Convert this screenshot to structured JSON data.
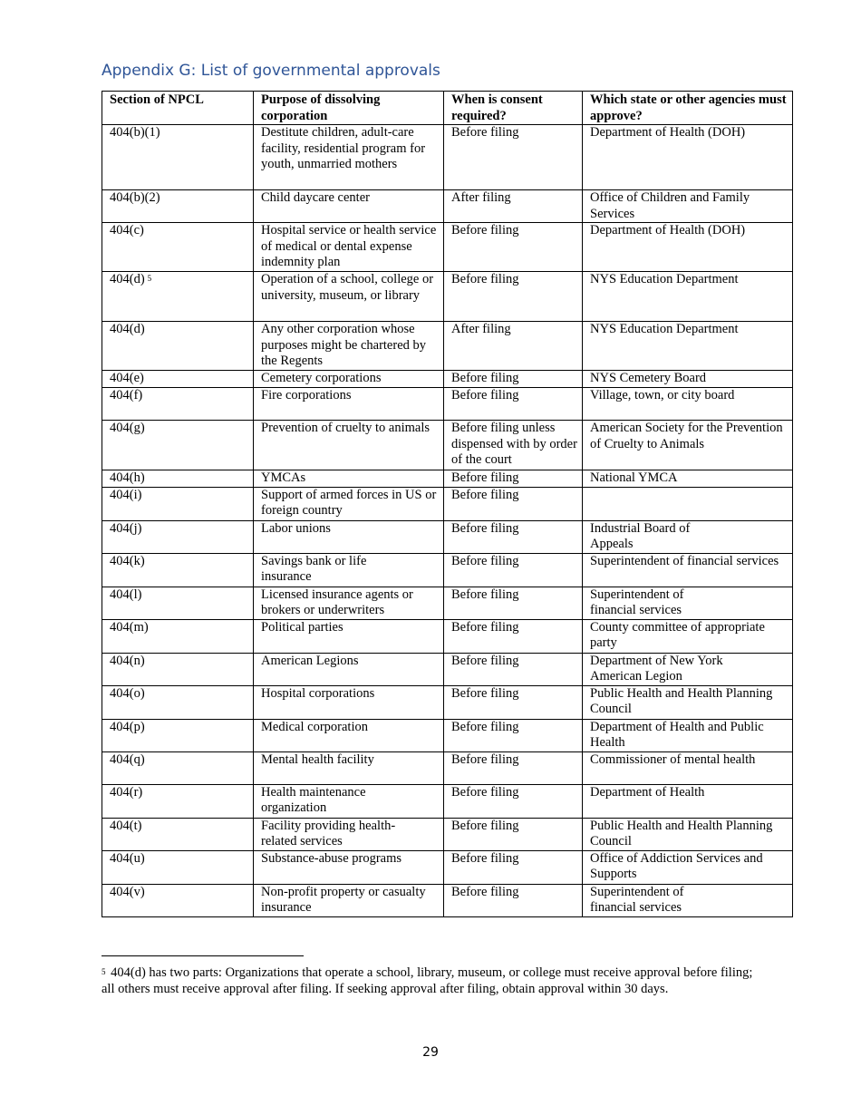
{
  "title": "Appendix G: List of governmental approvals",
  "table": {
    "headers": [
      "Section of NPCL",
      "Purpose of dissolving corporation",
      "When is consent required?",
      "Which state or other agencies must approve?"
    ],
    "rows": [
      {
        "section": "404(b)(1)",
        "purpose": "Destitute children, adult-care facility, residential program for youth, unmarried mothers",
        "when": "Before filing",
        "agency": "Department of Health (DOH)"
      },
      {
        "section": "404(b)(2)",
        "purpose": "Child daycare center",
        "when": "After filing",
        "agency": "Office of Children and Family Services"
      },
      {
        "section": "404(c)",
        "purpose": "Hospital service or health service of medical or dental expense indemnity plan",
        "when": "Before filing",
        "agency": "Department of Health (DOH)"
      },
      {
        "section": "404(d)",
        "footnote_ref": "5",
        "purpose": "Operation of a school, college or university, museum, or library",
        "when": "Before filing",
        "agency": "NYS Education Department"
      },
      {
        "section": "404(d)",
        "purpose": "Any other corporation whose purposes might be chartered by the Regents",
        "when": "After filing",
        "agency": "NYS Education Department"
      },
      {
        "section": "404(e)",
        "purpose": "Cemetery corporations",
        "when": "Before filing",
        "agency": "NYS Cemetery Board"
      },
      {
        "section": "404(f)",
        "purpose": "Fire corporations",
        "when": "Before filing",
        "agency": "Village, town, or city board"
      },
      {
        "section": "404(g)",
        "purpose": "Prevention of cruelty to animals",
        "when": "Before filing unless dispensed with by order of the court",
        "agency": "American Society for the Prevention of Cruelty to Animals"
      },
      {
        "section": "404(h)",
        "purpose": "YMCAs",
        "when": "Before filing",
        "agency": "National YMCA"
      },
      {
        "section": "404(i)",
        "purpose": "Support of armed forces in US or foreign country",
        "when": "Before filing",
        "agency": ""
      },
      {
        "section": "404(j)",
        "purpose": "Labor unions",
        "when": "Before filing",
        "agency": "Industrial Board of\nAppeals"
      },
      {
        "section": "404(k)",
        "purpose": "Savings bank or life\ninsurance",
        "when": "Before filing",
        "agency": "Superintendent of financial services"
      },
      {
        "section": "404(l)",
        "purpose": "Licensed insurance agents or brokers or underwriters",
        "when": "Before filing",
        "agency": "Superintendent of\nfinancial services"
      },
      {
        "section": "404(m)",
        "purpose": "Political parties",
        "when": "Before filing",
        "agency": "County committee of appropriate party"
      },
      {
        "section": "404(n)",
        "purpose": "American Legions",
        "when": "Before filing",
        "agency": "Department of New York\nAmerican Legion"
      },
      {
        "section": "404(o)",
        "purpose": "Hospital corporations",
        "when": "Before filing",
        "agency": "Public Health and Health Planning Council"
      },
      {
        "section": "404(p)",
        "purpose": "Medical corporation",
        "when": "Before filing",
        "agency": "Department of Health and Public Health"
      },
      {
        "section": "404(q)",
        "purpose": "Mental health facility",
        "when": "Before filing",
        "agency": "Commissioner of mental health"
      },
      {
        "section": "404(r)",
        "purpose": "Health maintenance\norganization",
        "when": "Before filing",
        "agency": "Department of Health"
      },
      {
        "section": "404(t)",
        "purpose": "Facility providing health-\nrelated services",
        "when": "Before filing",
        "agency": "Public Health and Health Planning Council"
      },
      {
        "section": "404(u)",
        "purpose": "Substance-abuse programs",
        "when": "Before filing",
        "agency": "Office of Addiction Services and Supports"
      },
      {
        "section": "404(v)",
        "purpose": "Non-profit property or casualty insurance",
        "when": "Before filing",
        "agency": "Superintendent of\nfinancial services"
      }
    ]
  },
  "footnote": {
    "ref": "5",
    "text": "404(d) has two parts: Organizations that operate a school, library, museum, or college must receive approval before filing; all others must receive approval after filing. If seeking approval after filing, obtain approval within 30 days."
  },
  "page_number": "29"
}
